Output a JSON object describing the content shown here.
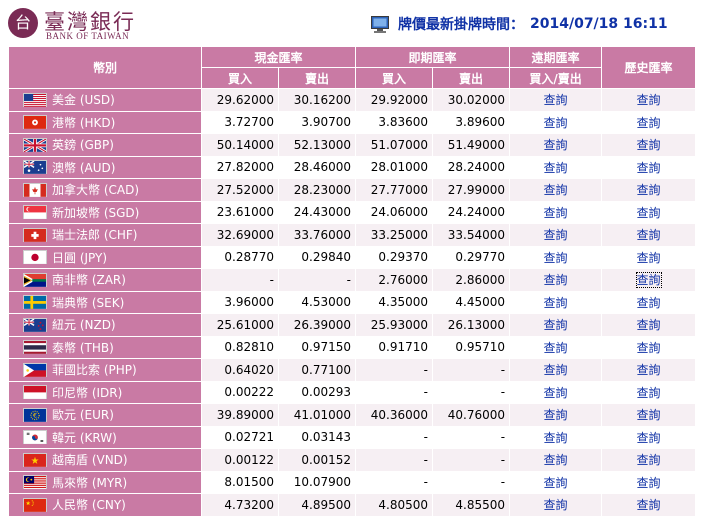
{
  "logo": {
    "seal_char": "台",
    "cn": "臺灣銀行",
    "en": "BANK OF TAIWAN"
  },
  "header": {
    "label": "牌價最新掛牌時間：",
    "time": "2014/07/18 16:11",
    "icon": "monitor-icon"
  },
  "table": {
    "currency_header": "幣別",
    "cash_header": "現金匯率",
    "spot_header": "即期匯率",
    "forward_header": "遠期匯率",
    "history_header": "歷史匯率",
    "buy": "買入",
    "sell": "賣出",
    "forward_sub": "買入/賣出",
    "query": "查詢",
    "rows": [
      {
        "flag": "us",
        "name": "美金 (USD)",
        "cash_buy": "29.62000",
        "cash_sell": "30.16200",
        "spot_buy": "29.92000",
        "spot_sell": "30.02000"
      },
      {
        "flag": "hk",
        "name": "港幣 (HKD)",
        "cash_buy": "3.72700",
        "cash_sell": "3.90700",
        "spot_buy": "3.83600",
        "spot_sell": "3.89600"
      },
      {
        "flag": "gb",
        "name": "英鎊 (GBP)",
        "cash_buy": "50.14000",
        "cash_sell": "52.13000",
        "spot_buy": "51.07000",
        "spot_sell": "51.49000"
      },
      {
        "flag": "au",
        "name": "澳幣 (AUD)",
        "cash_buy": "27.82000",
        "cash_sell": "28.46000",
        "spot_buy": "28.01000",
        "spot_sell": "28.24000"
      },
      {
        "flag": "ca",
        "name": "加拿大幣 (CAD)",
        "cash_buy": "27.52000",
        "cash_sell": "28.23000",
        "spot_buy": "27.77000",
        "spot_sell": "27.99000"
      },
      {
        "flag": "sg",
        "name": "新加坡幣 (SGD)",
        "cash_buy": "23.61000",
        "cash_sell": "24.43000",
        "spot_buy": "24.06000",
        "spot_sell": "24.24000"
      },
      {
        "flag": "ch",
        "name": "瑞士法郎 (CHF)",
        "cash_buy": "32.69000",
        "cash_sell": "33.76000",
        "spot_buy": "33.25000",
        "spot_sell": "33.54000"
      },
      {
        "flag": "jp",
        "name": "日圓 (JPY)",
        "cash_buy": "0.28770",
        "cash_sell": "0.29840",
        "spot_buy": "0.29370",
        "spot_sell": "0.29770"
      },
      {
        "flag": "za",
        "name": "南非幣 (ZAR)",
        "cash_buy": "-",
        "cash_sell": "-",
        "spot_buy": "2.76000",
        "spot_sell": "2.86000"
      },
      {
        "flag": "se",
        "name": "瑞典幣 (SEK)",
        "cash_buy": "3.96000",
        "cash_sell": "4.53000",
        "spot_buy": "4.35000",
        "spot_sell": "4.45000"
      },
      {
        "flag": "nz",
        "name": "紐元 (NZD)",
        "cash_buy": "25.61000",
        "cash_sell": "26.39000",
        "spot_buy": "25.93000",
        "spot_sell": "26.13000"
      },
      {
        "flag": "th",
        "name": "泰幣 (THB)",
        "cash_buy": "0.82810",
        "cash_sell": "0.97150",
        "spot_buy": "0.91710",
        "spot_sell": "0.95710"
      },
      {
        "flag": "ph",
        "name": "菲國比索 (PHP)",
        "cash_buy": "0.64020",
        "cash_sell": "0.77100",
        "spot_buy": "-",
        "spot_sell": "-"
      },
      {
        "flag": "id",
        "name": "印尼幣 (IDR)",
        "cash_buy": "0.00222",
        "cash_sell": "0.00293",
        "spot_buy": "-",
        "spot_sell": "-"
      },
      {
        "flag": "eu",
        "name": "歐元 (EUR)",
        "cash_buy": "39.89000",
        "cash_sell": "41.01000",
        "spot_buy": "40.36000",
        "spot_sell": "40.76000"
      },
      {
        "flag": "kr",
        "name": "韓元 (KRW)",
        "cash_buy": "0.02721",
        "cash_sell": "0.03143",
        "spot_buy": "-",
        "spot_sell": "-"
      },
      {
        "flag": "vn",
        "name": "越南盾 (VND)",
        "cash_buy": "0.00122",
        "cash_sell": "0.00152",
        "spot_buy": "-",
        "spot_sell": "-"
      },
      {
        "flag": "my",
        "name": "馬來幣 (MYR)",
        "cash_buy": "8.01500",
        "cash_sell": "10.07900",
        "spot_buy": "-",
        "spot_sell": "-"
      },
      {
        "flag": "cn",
        "name": "人民幣 (CNY)",
        "cash_buy": "4.73200",
        "cash_sell": "4.89500",
        "spot_buy": "4.80500",
        "spot_sell": "4.85500"
      }
    ]
  },
  "colors": {
    "header_bg": "#c97aa4",
    "link": "#1032a6",
    "row_alt": "#f6eff3"
  }
}
